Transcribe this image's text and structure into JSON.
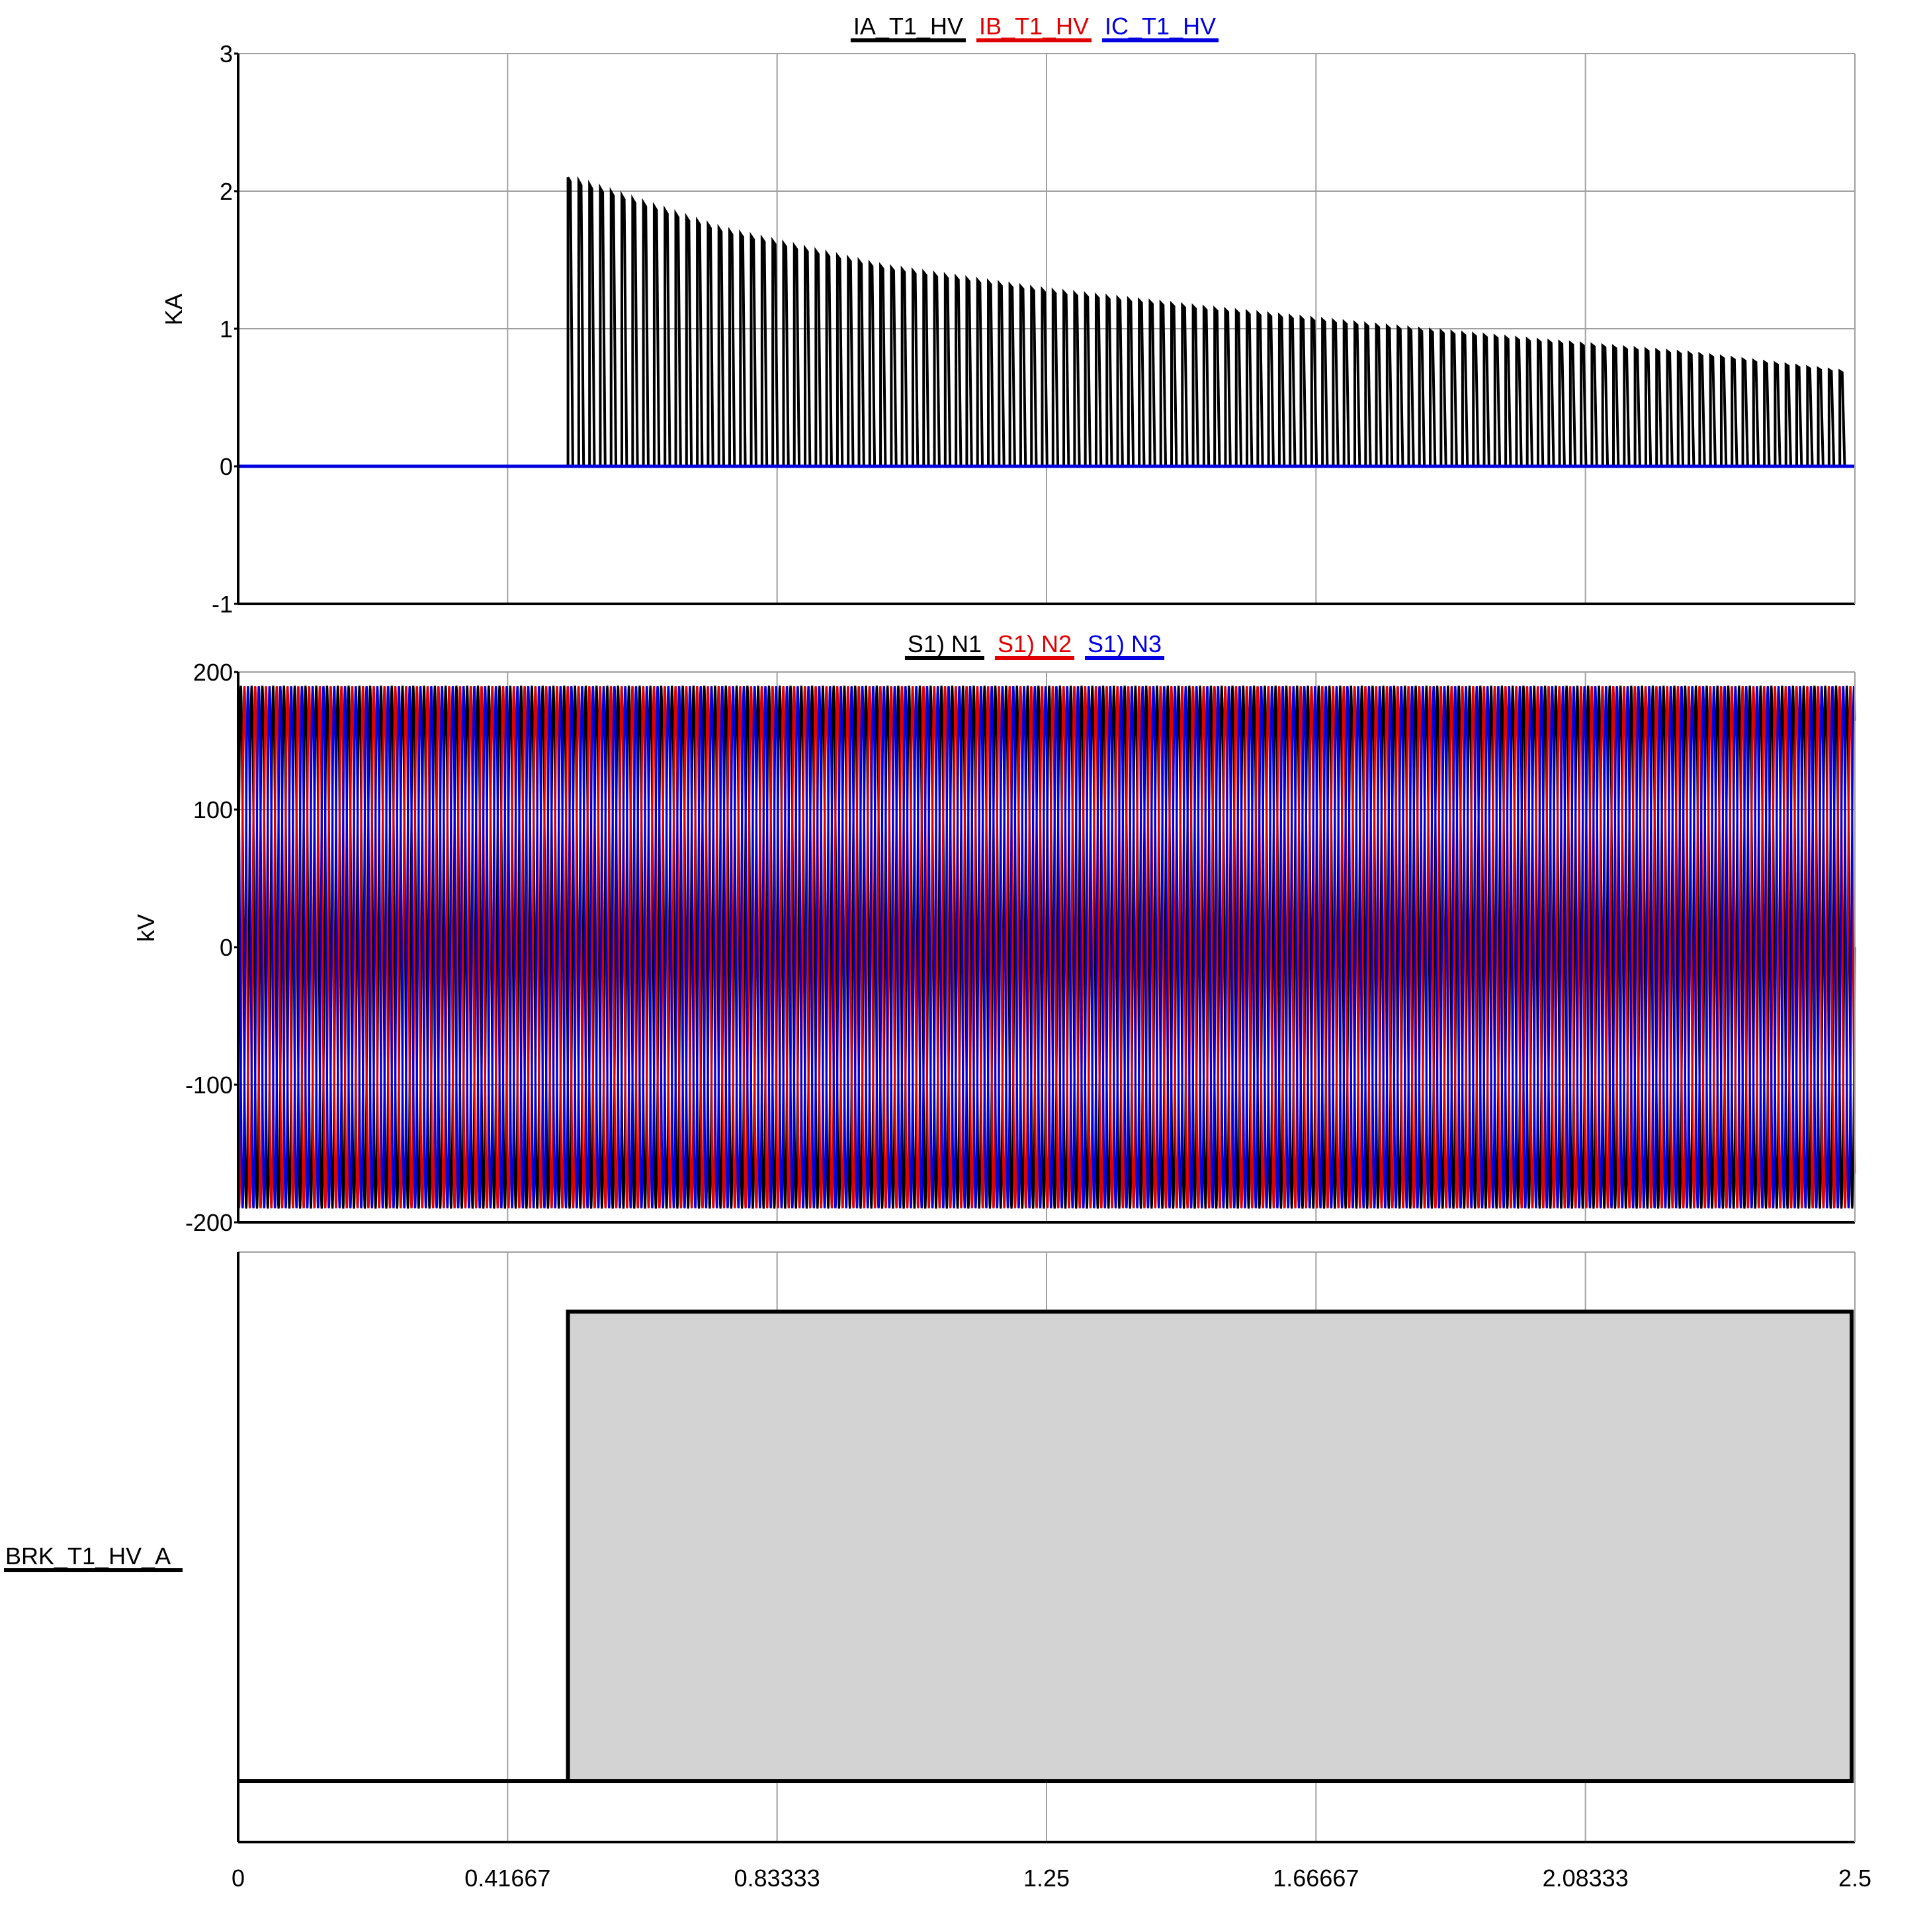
{
  "chart_data": [
    {
      "type": "line",
      "title": "",
      "ylabel": "KA",
      "xlim": [
        0,
        2.5
      ],
      "ylim": [
        -1,
        3
      ],
      "y_ticks": [
        "3",
        "2",
        "1",
        "0",
        "-1"
      ],
      "grid": true,
      "legend_position": "top-center",
      "series": [
        {
          "name": "IA_T1_HV",
          "color": "#000000",
          "description": "inrush current pulses (one per cycle, 60 Hz) starting at breaker close, decaying envelope",
          "start_x": 0.51,
          "peak_envelope": [
            [
              0.51,
              2.1
            ],
            [
              0.75,
              1.72
            ],
            [
              1.0,
              1.45
            ],
            [
              1.25,
              1.28
            ],
            [
              1.5,
              1.15
            ],
            [
              1.75,
              1.03
            ],
            [
              2.0,
              0.92
            ],
            [
              2.25,
              0.82
            ],
            [
              2.48,
              0.69
            ]
          ]
        },
        {
          "name": "IB_T1_HV",
          "color": "#e00000",
          "values_constant": 0
        },
        {
          "name": "IC_T1_HV",
          "color": "#0000e0",
          "values_constant": 0
        }
      ]
    },
    {
      "type": "line",
      "title": "",
      "ylabel": "kV",
      "xlim": [
        0,
        2.5
      ],
      "ylim": [
        -200,
        200
      ],
      "y_ticks": [
        "200",
        "100",
        "0",
        "-100",
        "-200"
      ],
      "grid": true,
      "legend_position": "top-center",
      "series": [
        {
          "name": "S1) N1",
          "color": "#000000",
          "amplitude": 190,
          "frequency_hz": 60,
          "phase_deg": 0
        },
        {
          "name": "S1) N2",
          "color": "#e00000",
          "amplitude": 190,
          "frequency_hz": 60,
          "phase_deg": -120
        },
        {
          "name": "S1) N3",
          "color": "#0000e0",
          "amplitude": 190,
          "frequency_hz": 60,
          "phase_deg": 120
        }
      ]
    },
    {
      "type": "area",
      "title": "",
      "signal_label": "BRK_T1_HV_A",
      "xlim": [
        0,
        2.5
      ],
      "x_ticks": [
        "0",
        "0.41667",
        "0.83333",
        "1.25",
        "1.66667",
        "2.08333",
        "2.5"
      ],
      "grid": true,
      "fill_color": "#d3d3d3",
      "steps": [
        [
          0,
          0
        ],
        [
          0.51,
          1
        ],
        [
          2.495,
          1
        ],
        [
          2.495,
          0
        ]
      ]
    }
  ]
}
